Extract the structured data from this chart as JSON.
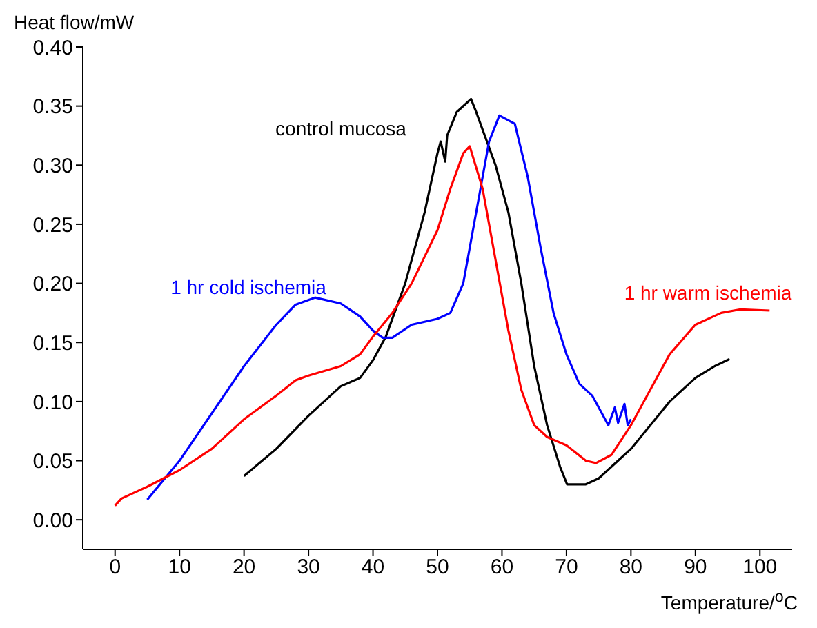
{
  "chart_data": {
    "type": "line",
    "xlabel": "Temperature/$^{o}$C",
    "ylabel": "Heat flow/mW",
    "xlim": [
      -5,
      105
    ],
    "xticks": [
      0,
      10,
      20,
      30,
      40,
      50,
      60,
      70,
      80,
      90,
      100
    ],
    "ylim": [
      -0.025,
      0.4
    ],
    "yticks": [
      {
        "value": 0,
        "label": "0.00"
      },
      {
        "value": 0.05,
        "label": "0.05"
      },
      {
        "value": 0.1,
        "label": "0.10"
      },
      {
        "value": 0.15,
        "label": "0.15"
      },
      {
        "value": 0.2,
        "label": "0.20"
      },
      {
        "value": 0.25,
        "label": "0.25"
      },
      {
        "value": 0.3,
        "label": "0.30"
      },
      {
        "value": 0.35,
        "label": "0.35"
      },
      {
        "value": 0.4,
        "label": "0.40"
      }
    ],
    "grid": false,
    "marker": "none",
    "line_style": "solid",
    "series": [
      {
        "name": "control mucosa",
        "color": "#000000",
        "x": [
          20,
          25,
          30,
          35,
          38,
          40,
          42,
          45,
          48,
          50,
          50.5,
          51.2,
          51.5,
          53,
          55.2,
          56,
          57,
          59,
          61,
          63,
          65,
          67,
          69,
          70.1,
          73,
          75,
          78,
          80,
          83,
          86,
          90,
          93,
          95.3
        ],
        "values": [
          0.037,
          0.06,
          0.088,
          0.113,
          0.12,
          0.135,
          0.155,
          0.2,
          0.26,
          0.31,
          0.32,
          0.303,
          0.325,
          0.345,
          0.356,
          0.345,
          0.33,
          0.3,
          0.26,
          0.2,
          0.13,
          0.08,
          0.045,
          0.03,
          0.03,
          0.035,
          0.05,
          0.06,
          0.08,
          0.1,
          0.12,
          0.13,
          0.136
        ]
      },
      {
        "name": "1 hr cold ischemia",
        "color": "#0000ff",
        "x": [
          5,
          10,
          15,
          20,
          25,
          28,
          31,
          35,
          38,
          40,
          41.5,
          43,
          46,
          50,
          52,
          54,
          56,
          58,
          59.6,
          62,
          64,
          66,
          68,
          70,
          72,
          74,
          75.5,
          76.5,
          77.5,
          78,
          79,
          79.5,
          80
        ],
        "values": [
          0.017,
          0.05,
          0.09,
          0.13,
          0.165,
          0.182,
          0.188,
          0.183,
          0.172,
          0.16,
          0.154,
          0.154,
          0.165,
          0.17,
          0.175,
          0.2,
          0.26,
          0.32,
          0.342,
          0.335,
          0.29,
          0.23,
          0.175,
          0.14,
          0.115,
          0.105,
          0.09,
          0.08,
          0.095,
          0.082,
          0.098,
          0.08,
          0.085
        ]
      },
      {
        "name": "1 hr warm ischemia",
        "color": "#ff0000",
        "x": [
          0,
          1,
          5,
          10,
          15,
          20,
          25,
          28,
          30,
          35,
          38,
          40,
          43,
          46,
          50,
          52,
          54,
          55,
          57,
          59,
          61,
          63,
          65,
          67,
          70,
          73,
          74.6,
          77,
          80,
          83,
          86,
          90,
          94,
          97,
          101.5
        ],
        "values": [
          0.012,
          0.018,
          0.028,
          0.042,
          0.06,
          0.085,
          0.105,
          0.118,
          0.122,
          0.13,
          0.14,
          0.155,
          0.175,
          0.2,
          0.245,
          0.28,
          0.31,
          0.316,
          0.28,
          0.22,
          0.16,
          0.11,
          0.08,
          0.07,
          0.063,
          0.05,
          0.048,
          0.055,
          0.08,
          0.11,
          0.14,
          0.165,
          0.175,
          0.178,
          0.177
        ]
      }
    ]
  }
}
